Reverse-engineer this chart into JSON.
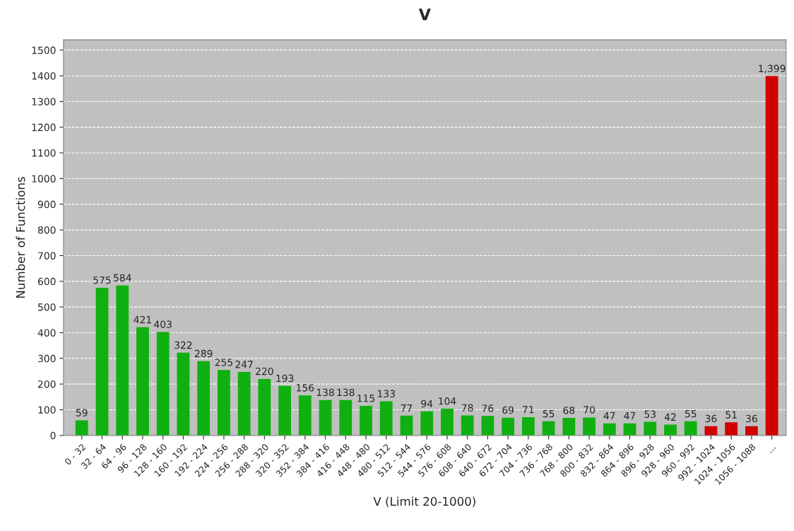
{
  "chart_data": {
    "type": "bar",
    "title": "V",
    "xlabel": "V (Limit 20-1000)",
    "ylabel": "Number of Functions",
    "categories": [
      "0 - 32",
      "32 - 64",
      "64 - 96",
      "96 - 128",
      "128 - 160",
      "160 - 192",
      "192 - 224",
      "224 - 256",
      "256 - 288",
      "288 - 320",
      "320 - 352",
      "352 - 384",
      "384 - 416",
      "416 - 448",
      "448 - 480",
      "480 - 512",
      "512 - 544",
      "544 - 576",
      "576 - 608",
      "608 - 640",
      "640 - 672",
      "672 - 704",
      "704 - 736",
      "736 - 768",
      "768 - 800",
      "800 - 832",
      "832 - 864",
      "864 - 896",
      "896 - 928",
      "928 - 960",
      "960 - 992",
      "992 - 1024",
      "1024 - 1056",
      "1056 - 1088",
      "..."
    ],
    "values": [
      59,
      575,
      584,
      421,
      403,
      322,
      289,
      255,
      247,
      220,
      193,
      156,
      138,
      138,
      115,
      133,
      77,
      94,
      104,
      78,
      76,
      69,
      71,
      55,
      68,
      70,
      47,
      47,
      53,
      42,
      55,
      36,
      51,
      36,
      1399
    ],
    "value_labels": [
      "59",
      "575",
      "584",
      "421",
      "403",
      "322",
      "289",
      "255",
      "247",
      "220",
      "193",
      "156",
      "138",
      "138",
      "115",
      "133",
      "77",
      "94",
      "104",
      "78",
      "76",
      "69",
      "71",
      "55",
      "68",
      "70",
      "47",
      "47",
      "53",
      "42",
      "55",
      "36",
      "51",
      "36",
      "1,399"
    ],
    "colors": [
      "#10b010",
      "#10b010",
      "#10b010",
      "#10b010",
      "#10b010",
      "#10b010",
      "#10b010",
      "#10b010",
      "#10b010",
      "#10b010",
      "#10b010",
      "#10b010",
      "#10b010",
      "#10b010",
      "#10b010",
      "#10b010",
      "#10b010",
      "#10b010",
      "#10b010",
      "#10b010",
      "#10b010",
      "#10b010",
      "#10b010",
      "#10b010",
      "#10b010",
      "#10b010",
      "#10b010",
      "#10b010",
      "#10b010",
      "#10b010",
      "#10b010",
      "#d00000",
      "#d00000",
      "#d00000",
      "#d00000"
    ],
    "ylim": [
      0,
      1540
    ],
    "yticks": [
      0,
      100,
      200,
      300,
      400,
      500,
      600,
      700,
      800,
      900,
      1000,
      1100,
      1200,
      1300,
      1400,
      1500
    ],
    "grid": "y",
    "legend": false
  }
}
